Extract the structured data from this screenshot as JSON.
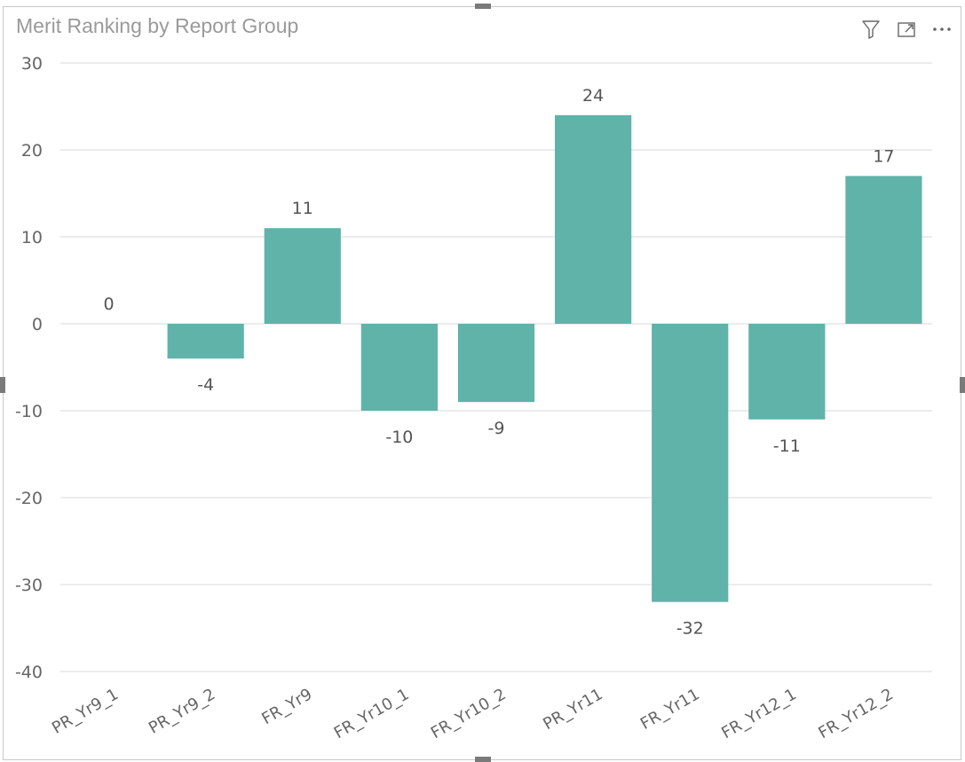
{
  "visual": {
    "title": "Merit Ranking by Report Group",
    "header_icons": [
      "filter-icon",
      "focus-mode-icon",
      "more-options-icon"
    ]
  },
  "colors": {
    "bar": "#5fb3a9",
    "grid": "#e6e6e6",
    "text": "#666666"
  },
  "chart_data": {
    "type": "bar",
    "title": "Merit Ranking by Report Group",
    "categories": [
      "PR_Yr9_1",
      "PR_Yr9_2",
      "FR_Yr9",
      "FR_Yr10_1",
      "FR_Yr10_2",
      "PR_Yr11",
      "FR_Yr11",
      "FR_Yr12_1",
      "FR_Yr12_2"
    ],
    "values": [
      0,
      -4,
      11,
      -10,
      -9,
      24,
      -32,
      -11,
      17
    ],
    "data_labels": [
      "0",
      "-4",
      "11",
      "-10",
      "-9",
      "24",
      "-32",
      "-11",
      "17"
    ],
    "ylim": [
      -40,
      30
    ],
    "yticks": [
      30,
      20,
      10,
      0,
      -10,
      -20,
      -30,
      -40
    ],
    "ytick_labels": [
      "30",
      "20",
      "10",
      "0",
      "-10",
      "-20",
      "-30",
      "-40"
    ],
    "xlabel": "",
    "ylabel": "",
    "grid": true,
    "legend": "none"
  }
}
